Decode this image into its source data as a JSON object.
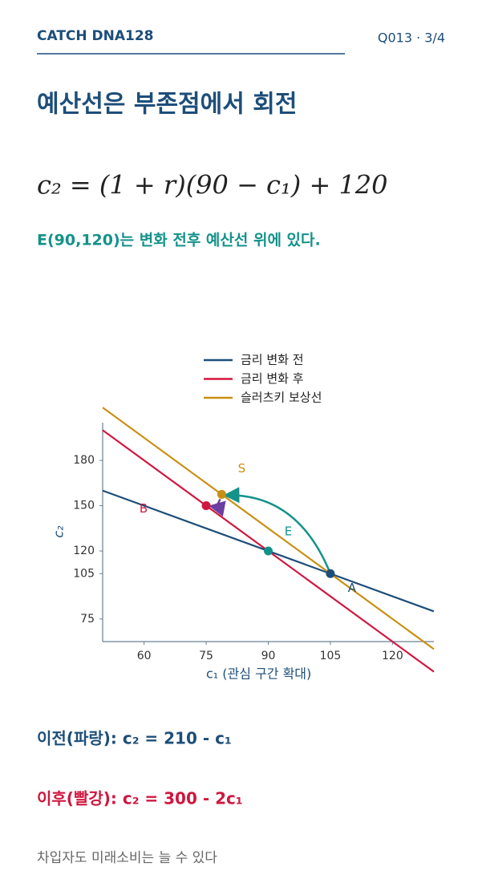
{
  "header": {
    "brand": "CATCH DNA128",
    "page": "Q013 · 3/4"
  },
  "title": "예산선은 부존점에서 회전",
  "formula": "c₂ = (1 + r)(90 − c₁) + 120",
  "subtitle": "E(90,120)는 변화 전후 예산선 위에 있다.",
  "chart_data": {
    "type": "line",
    "x": [
      50,
      130
    ],
    "series": [
      {
        "name": "금리 변화 전",
        "color": "#1d4e79",
        "values": [
          160,
          80
        ]
      },
      {
        "name": "금리 변화 후",
        "color": "#d0173f",
        "values": [
          200,
          40
        ]
      },
      {
        "name": "슬러츠키 보상선",
        "color": "#c98f12",
        "values": [
          215,
          55
        ]
      }
    ],
    "points": [
      {
        "label": "A",
        "x": 105,
        "y": 105,
        "color": "#1d4e79"
      },
      {
        "label": "E",
        "x": 90,
        "y": 120,
        "color": "#13928a"
      },
      {
        "label": "B",
        "x": 75,
        "y": 150,
        "color": "#d0173f"
      },
      {
        "label": "S",
        "x": 78.75,
        "y": 157.5,
        "color": "#c98f12"
      }
    ],
    "xlim": [
      50,
      130
    ],
    "xticks": [
      60,
      75,
      90,
      105,
      120
    ],
    "ylim": [
      60,
      205
    ],
    "yticks": [
      75,
      105,
      120,
      150,
      180
    ],
    "x_label": "c₁ (관심 구간 확대)",
    "y_label": "c₂"
  },
  "notes": [
    {
      "text": "이전(파랑): c₂ = 210 - c₁",
      "color": "#1d4e79"
    },
    {
      "text": "이후(빨강): c₂ = 300 - 2c₁",
      "color": "#d0173f"
    }
  ],
  "footer": "차입자도 미래소비는 늘 수 있다"
}
